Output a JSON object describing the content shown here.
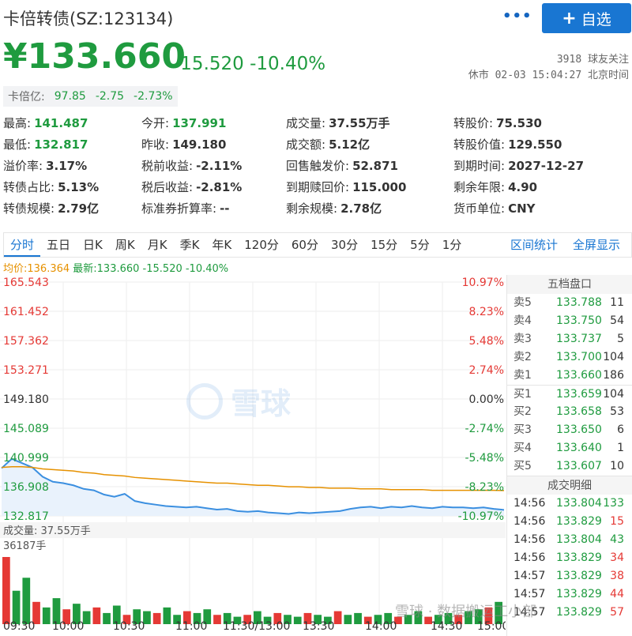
{
  "header": {
    "title": "卡倍转债(SZ:123134)",
    "add_button_label": "自选",
    "more_icon": "more-dots-icon"
  },
  "quote": {
    "price": "¥133.660",
    "change": "-15.520",
    "change_pct": "-10.40%",
    "followers": "3918 球友关注",
    "market_time": "休市 02-03 15:04:27 北京时间"
  },
  "index_box": {
    "label": "卡倍亿:",
    "value": "97.85",
    "change": "-2.75",
    "change_pct": "-2.73%"
  },
  "stats": [
    [
      {
        "k": "最高:",
        "v": "141.487",
        "c": "g"
      },
      {
        "k": "今开:",
        "v": "137.991",
        "c": "g"
      },
      {
        "k": "成交量:",
        "v": "37.55万手",
        "c": ""
      },
      {
        "k": "转股价:",
        "v": "75.530",
        "c": ""
      }
    ],
    [
      {
        "k": "最低:",
        "v": "132.817",
        "c": "g"
      },
      {
        "k": "昨收:",
        "v": "149.180",
        "c": ""
      },
      {
        "k": "成交额:",
        "v": "5.12亿",
        "c": ""
      },
      {
        "k": "转股价值:",
        "v": "129.550",
        "c": ""
      }
    ],
    [
      {
        "k": "溢价率:",
        "v": "3.17%",
        "c": ""
      },
      {
        "k": "税前收益:",
        "v": "-2.11%",
        "c": ""
      },
      {
        "k": "回售触发价:",
        "v": "52.871",
        "c": ""
      },
      {
        "k": "到期时间:",
        "v": "2027-12-27",
        "c": ""
      }
    ],
    [
      {
        "k": "转债占比:",
        "v": "5.13%",
        "c": ""
      },
      {
        "k": "税后收益:",
        "v": "-2.81%",
        "c": ""
      },
      {
        "k": "到期赎回价:",
        "v": "115.000",
        "c": ""
      },
      {
        "k": "剩余年限:",
        "v": "4.90",
        "c": ""
      }
    ],
    [
      {
        "k": "转债规模:",
        "v": "2.79亿",
        "c": ""
      },
      {
        "k": "标准券折算率:",
        "v": "--",
        "c": ""
      },
      {
        "k": "剩余规模:",
        "v": "2.78亿",
        "c": ""
      },
      {
        "k": "货币单位:",
        "v": "CNY",
        "c": ""
      }
    ]
  ],
  "tabs": [
    "分时",
    "五日",
    "日K",
    "周K",
    "月K",
    "季K",
    "年K",
    "120分",
    "60分",
    "30分",
    "15分",
    "5分",
    "1分"
  ],
  "active_tab": "分时",
  "tab_right": [
    "区间统计",
    "全屏显示"
  ],
  "chart_legend": {
    "avg": "均价:136.364",
    "latest": "最新:133.660 -15.520 -10.40%"
  },
  "chart_labels": {
    "watermark": "雪球",
    "volume_label": "成交量: 37.55万手",
    "volume_max": "36187手"
  },
  "chart_data": {
    "type": "line",
    "title": "",
    "y_left_ticks": [
      "165.543",
      "161.452",
      "157.362",
      "153.271",
      "149.180",
      "145.089",
      "140.999",
      "136.908",
      "132.817"
    ],
    "y_right_ticks": [
      "10.97%",
      "8.23%",
      "5.48%",
      "2.74%",
      "0.00%",
      "-2.74%",
      "-5.48%",
      "-8.23%",
      "-10.97%"
    ],
    "x_ticks": [
      "09:30",
      "10:00",
      "10:30",
      "11:00",
      "11:30/13:00",
      "13:30",
      "14:00",
      "14:30",
      "15:00"
    ],
    "ylim": [
      132.817,
      165.543
    ],
    "prev_close": 149.18,
    "series": [
      {
        "name": "",
        "color": "#3b8fe0",
        "values": [
          139.5,
          140.8,
          140.2,
          139.6,
          138.3,
          137.6,
          137.4,
          137.1,
          136.6,
          136.4,
          135.8,
          135.5,
          135.9,
          134.9,
          134.6,
          134.4,
          134.2,
          134.1,
          134.0,
          134.1,
          133.9,
          133.7,
          133.8,
          133.5,
          133.4,
          133.5,
          133.3,
          133.2,
          133.1,
          133.3,
          133.2,
          133.3,
          133.4,
          133.5,
          133.8,
          134.0,
          134.1,
          133.9,
          134.1,
          134.0,
          134.2,
          134.0,
          133.9,
          134.1,
          134.0,
          134.0,
          133.9,
          134.0,
          133.8,
          133.66
        ]
      },
      {
        "name": "",
        "color": "#e69100",
        "values": [
          139.6,
          139.7,
          139.7,
          139.6,
          139.4,
          139.3,
          139.2,
          139.1,
          138.9,
          138.8,
          138.6,
          138.5,
          138.4,
          138.2,
          138.1,
          138.0,
          137.9,
          137.8,
          137.7,
          137.6,
          137.5,
          137.4,
          137.4,
          137.3,
          137.2,
          137.1,
          137.1,
          137.0,
          136.9,
          136.9,
          136.8,
          136.8,
          136.7,
          136.7,
          136.7,
          136.6,
          136.6,
          136.6,
          136.5,
          136.5,
          136.5,
          136.5,
          136.4,
          136.4,
          136.4,
          136.4,
          136.4,
          136.4,
          136.4,
          136.364
        ]
      }
    ],
    "volume": [
      36187,
      18000,
      25000,
      12000,
      9000,
      14000,
      8000,
      11000,
      7000,
      9000,
      6000,
      10000,
      5000,
      8000,
      7000,
      6000,
      9000,
      5000,
      7000,
      6000,
      8000,
      5000,
      6000,
      4000,
      5000,
      7000,
      4000,
      6000,
      5000,
      4000,
      6000,
      5000,
      4000,
      7000,
      5000,
      6000,
      4000,
      5000,
      6000,
      4000,
      5000,
      7000,
      4000,
      5000,
      6000,
      5000,
      7000,
      8000,
      9000,
      12000
    ]
  },
  "orderbook": {
    "title": "五档盘口",
    "asks": [
      {
        "label": "卖5",
        "price": "133.788",
        "vol": "11"
      },
      {
        "label": "卖4",
        "price": "133.750",
        "vol": "54"
      },
      {
        "label": "卖3",
        "price": "133.737",
        "vol": "5"
      },
      {
        "label": "卖2",
        "price": "133.700",
        "vol": "104"
      },
      {
        "label": "卖1",
        "price": "133.660",
        "vol": "186"
      }
    ],
    "bids": [
      {
        "label": "买1",
        "price": "133.659",
        "vol": "104"
      },
      {
        "label": "买2",
        "price": "133.658",
        "vol": "53"
      },
      {
        "label": "买3",
        "price": "133.650",
        "vol": "6"
      },
      {
        "label": "买4",
        "price": "133.640",
        "vol": "1"
      },
      {
        "label": "买5",
        "price": "133.607",
        "vol": "10"
      }
    ],
    "trades_title": "成交明细",
    "trades": [
      {
        "t": "14:56",
        "p": "133.804",
        "v": "133",
        "c": "green"
      },
      {
        "t": "14:56",
        "p": "133.829",
        "v": "15",
        "c": "red"
      },
      {
        "t": "14:56",
        "p": "133.804",
        "v": "43",
        "c": "green"
      },
      {
        "t": "14:56",
        "p": "133.829",
        "v": "34",
        "c": "red"
      },
      {
        "t": "14:57",
        "p": "133.829",
        "v": "38",
        "c": "red"
      },
      {
        "t": "14:57",
        "p": "133.829",
        "v": "44",
        "c": "red"
      },
      {
        "t": "14:57",
        "p": "133.829",
        "v": "57",
        "c": "red"
      }
    ]
  },
  "footer_watermark": "雪球 · 数据搬运工小部"
}
